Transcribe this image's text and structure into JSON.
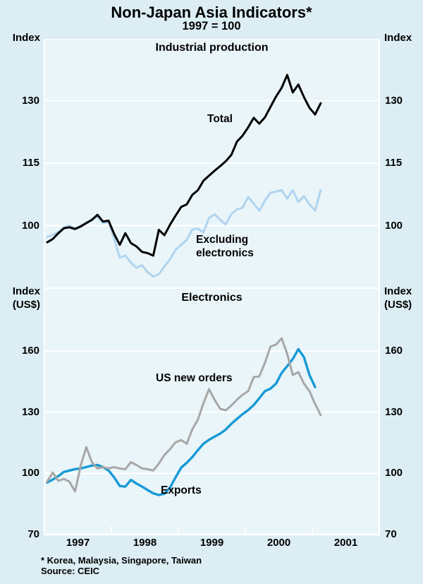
{
  "page": {
    "title": "Non-Japan Asia Indicators*",
    "subtitle": "1997 = 100",
    "footnote": "* Korea, Malaysia, Singapore, Taiwan",
    "source": "Source: CEIC"
  },
  "colors": {
    "background": "#dceef4",
    "plot_background": "#e9f5f8",
    "gridline": "#ffffff",
    "total_line": "#000000",
    "excluding_electronics_line": "#b0d4ef",
    "us_new_orders_line": "#a7a7a7",
    "exports_line": "#1899d6"
  },
  "x_axis": {
    "years": [
      "1997",
      "1998",
      "1999",
      "2000",
      "2001"
    ],
    "start": "1997-01",
    "end": "2001-12",
    "frequency": "monthly"
  },
  "chart_data": [
    {
      "type": "line",
      "panel_title": "Industrial production",
      "unit_label_lines": [
        "Index"
      ],
      "ylabel": "Index",
      "ylim": [
        85,
        144.7
      ],
      "yticks": [
        100,
        115,
        130
      ],
      "grid": "on",
      "x_start": "1997-01",
      "series": [
        {
          "name": "Total",
          "color": "#000000",
          "values": [
            96.0,
            96.8,
            98.2,
            99.4,
            99.6,
            99.2,
            99.8,
            100.6,
            101.4,
            102.6,
            101.0,
            101.2,
            98.0,
            95.4,
            98.2,
            95.8,
            95.0,
            93.7,
            93.4,
            92.8,
            99.0,
            97.7,
            100.2,
            102.4,
            104.5,
            105.1,
            107.4,
            108.5,
            110.8,
            112.0,
            113.2,
            114.3,
            115.5,
            117.0,
            120.2,
            121.6,
            123.6,
            125.9,
            124.5,
            126.0,
            128.5,
            131.0,
            133.1,
            136.2,
            132.0,
            133.9,
            130.9,
            128.3,
            126.7,
            129.4
          ]
        },
        {
          "name": "Excluding electronics",
          "color": "#b0d4ef",
          "values": [
            97.3,
            97.8,
            98.5,
            99.6,
            100.0,
            99.4,
            100.0,
            100.8,
            101.3,
            102.2,
            100.6,
            100.9,
            96.8,
            92.3,
            92.8,
            91.1,
            89.9,
            90.5,
            88.8,
            87.8,
            88.3,
            90.2,
            91.9,
            94.2,
            95.4,
            96.6,
            99.1,
            99.3,
            98.4,
            101.9,
            102.7,
            101.4,
            100.3,
            102.8,
            103.9,
            104.3,
            106.9,
            105.3,
            103.6,
            106.0,
            107.9,
            108.2,
            108.5,
            106.5,
            108.5,
            105.7,
            107.1,
            105.1,
            103.6,
            108.5
          ]
        }
      ]
    },
    {
      "type": "line",
      "panel_title": "Electronics",
      "unit_label_lines": [
        "Index",
        "(US$)"
      ],
      "ylabel": "Index (US$)",
      "ylim": [
        70,
        190.8
      ],
      "yticks": [
        70,
        100,
        130,
        160
      ],
      "grid": "on",
      "x_start": "1997-01",
      "series": [
        {
          "name": "US new orders",
          "color": "#a7a7a7",
          "values": [
            96.0,
            100.4,
            96.3,
            97.3,
            95.9,
            91.1,
            103.8,
            112.9,
            105.5,
            102.4,
            103.1,
            102.4,
            103.1,
            102.4,
            102.0,
            105.5,
            104.1,
            102.4,
            102.0,
            101.4,
            104.8,
            109.0,
            111.8,
            115.2,
            116.3,
            114.5,
            121.6,
            126.4,
            134.4,
            141.3,
            136.0,
            131.6,
            130.9,
            133.3,
            136.1,
            138.5,
            140.3,
            147.2,
            147.5,
            154.1,
            162.1,
            163.1,
            166.2,
            158.6,
            148.2,
            149.6,
            144.0,
            140.3,
            134.0,
            128.5
          ]
        },
        {
          "name": "Exports",
          "color": "#1899d6",
          "values": [
            95.5,
            97.0,
            98.7,
            100.7,
            101.4,
            102.1,
            102.4,
            103.1,
            103.8,
            104.1,
            103.1,
            101.4,
            98.0,
            93.8,
            93.5,
            96.8,
            95.0,
            93.5,
            91.8,
            90.2,
            89.4,
            90.0,
            93.0,
            98.0,
            102.8,
            105.2,
            108.0,
            111.4,
            114.5,
            116.5,
            118.0,
            119.5,
            121.5,
            124.3,
            126.7,
            129.0,
            131.0,
            133.5,
            136.8,
            140.3,
            141.5,
            144.0,
            149.2,
            152.6,
            156.1,
            160.9,
            157.0,
            148.2,
            142.3
          ]
        }
      ]
    }
  ],
  "annotations": {
    "total": "Total",
    "excluding_electronics": [
      "Excluding",
      "electronics"
    ],
    "us_new_orders": "US new orders",
    "exports": "Exports"
  }
}
